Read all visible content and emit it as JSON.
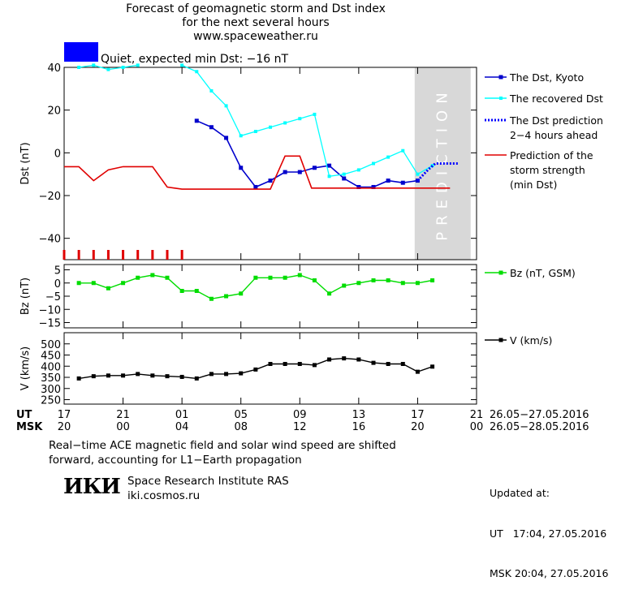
{
  "header": {
    "title_line1": "Forecast of geomagnetic storm and Dst index",
    "title_line2": "for the next several hours",
    "website": "www.spaceweather.ru",
    "status_text": "Quiet, expected min Dst: −16 nT",
    "status_color": "#0000ff"
  },
  "footer": {
    "note_line1": "Real−time ACE magnetic field and solar wind speed are shifted",
    "note_line2": "forward, accounting for L1−Earth propagation",
    "logo_text": "ИКИ",
    "institute": "Space Research Institute RAS",
    "institute_site": "iki.cosmos.ru",
    "updated_label": "Updated at:",
    "updated_ut": "UT   17:04, 27.05.2016",
    "updated_msk": "MSK 20:04, 27.05.2016"
  },
  "colors": {
    "dst_kyoto": "#0000cc",
    "recovered": "#00ffff",
    "prediction": "#0000ff",
    "storm": "#e00000",
    "bz": "#00dd00",
    "v": "#000000",
    "prediction_zone": "#d8d8d8"
  },
  "chart_data": [
    {
      "type": "line",
      "ylabel": "Dst (nT)",
      "ylim": [
        -50,
        40
      ],
      "yticks": [
        40,
        20,
        0,
        -20,
        -40
      ],
      "xlim": [
        0,
        28
      ],
      "prediction_zone": {
        "label": "PREDICTION",
        "x_range": [
          23.8,
          27.6
        ]
      },
      "series": [
        {
          "name": "The Dst, Kyoto",
          "x": [
            9,
            10,
            11,
            12,
            13,
            14,
            15,
            16,
            17,
            18,
            19,
            20,
            21,
            22,
            23,
            24
          ],
          "y": [
            15,
            12,
            7,
            -7,
            -16,
            -13,
            -9,
            -9,
            -7,
            -6,
            -12,
            -16,
            -16,
            -13,
            -14,
            -13
          ]
        },
        {
          "name": "The recovered Dst",
          "segments": [
            {
              "x": [
                1,
                2,
                3,
                4,
                5
              ],
              "y": [
                40,
                41,
                39,
                40,
                41
              ]
            },
            {
              "x": [
                8,
                9,
                10,
                11,
                12,
                13,
                14,
                15,
                16,
                17,
                18,
                19,
                20,
                21,
                22,
                23,
                24,
                25
              ],
              "y": [
                41,
                38,
                29,
                22,
                8,
                10,
                12,
                14,
                16,
                18,
                -11,
                -10,
                -8,
                -5,
                -2,
                1,
                -10,
                -6
              ]
            }
          ]
        },
        {
          "name": "The Dst prediction 2−4 hours ahead",
          "x": [
            24,
            24.7,
            25.2,
            26.8
          ],
          "y": [
            -13,
            -8,
            -5,
            -5
          ]
        },
        {
          "name": "Prediction of the storm strength (min Dst)",
          "x": [
            0,
            1,
            2,
            3,
            4,
            5,
            6,
            7,
            7.5,
            8,
            9,
            10,
            11,
            12,
            13,
            14,
            15,
            16,
            16.8,
            17.3,
            26.2
          ],
          "y": [
            -6.5,
            -6.5,
            -13,
            -8,
            -6.5,
            -6.5,
            -6.5,
            -16,
            -16.5,
            -17,
            -17,
            -17,
            -17,
            -17,
            -17,
            -17,
            -1.5,
            -1.5,
            -16.5,
            -16.5,
            -16.5
          ]
        }
      ]
    },
    {
      "type": "line",
      "ylabel": "Bz (nT)",
      "ylim": [
        -17,
        7
      ],
      "yticks": [
        5,
        0,
        -5,
        -10,
        -15
      ],
      "xlim": [
        0,
        28
      ],
      "series": [
        {
          "name": "Bz (nT, GSM)",
          "x": [
            1,
            2,
            3,
            4,
            5,
            6,
            7,
            8,
            9,
            10,
            11,
            12,
            13,
            14,
            15,
            16,
            17,
            18,
            19,
            20,
            21,
            22,
            23,
            24,
            25
          ],
          "y": [
            0,
            0,
            -2,
            0,
            2,
            3,
            2,
            -3,
            -3,
            -6,
            -5,
            -4,
            2,
            2,
            2,
            3,
            1,
            -4,
            -1,
            0,
            1,
            1,
            0,
            0,
            1
          ]
        }
      ]
    },
    {
      "type": "line",
      "ylabel": "V (km/s)",
      "ylim": [
        230,
        550
      ],
      "yticks": [
        500,
        450,
        400,
        350,
        300,
        250
      ],
      "xlim": [
        0,
        28
      ],
      "series": [
        {
          "name": "V (km/s)",
          "x": [
            1,
            2,
            3,
            4,
            5,
            6,
            7,
            8,
            9,
            10,
            11,
            12,
            13,
            14,
            15,
            16,
            17,
            18,
            19,
            20,
            21,
            22,
            23,
            24,
            25
          ],
          "y": [
            345,
            355,
            358,
            358,
            365,
            358,
            355,
            352,
            345,
            365,
            365,
            368,
            385,
            410,
            410,
            410,
            405,
            430,
            435,
            430,
            415,
            410,
            410,
            375,
            398
          ]
        }
      ]
    }
  ],
  "x_axis": {
    "ut_label": "UT",
    "msk_label": "MSK",
    "ticks": [
      {
        "x": 0,
        "ut": "17",
        "msk": "20"
      },
      {
        "x": 4,
        "ut": "21",
        "msk": "00"
      },
      {
        "x": 8,
        "ut": "01",
        "msk": "04"
      },
      {
        "x": 12,
        "ut": "05",
        "msk": "08"
      },
      {
        "x": 16,
        "ut": "09",
        "msk": "12"
      },
      {
        "x": 20,
        "ut": "13",
        "msk": "16"
      },
      {
        "x": 24,
        "ut": "17",
        "msk": "20"
      },
      {
        "x": 28,
        "ut": "21",
        "msk": "00"
      }
    ],
    "ut_date_range": "26.05−27.05.2016",
    "msk_date_range": "26.05−28.05.2016"
  },
  "storm_ticks_x": [
    0,
    1,
    2,
    3,
    4,
    5,
    6,
    7,
    8
  ]
}
